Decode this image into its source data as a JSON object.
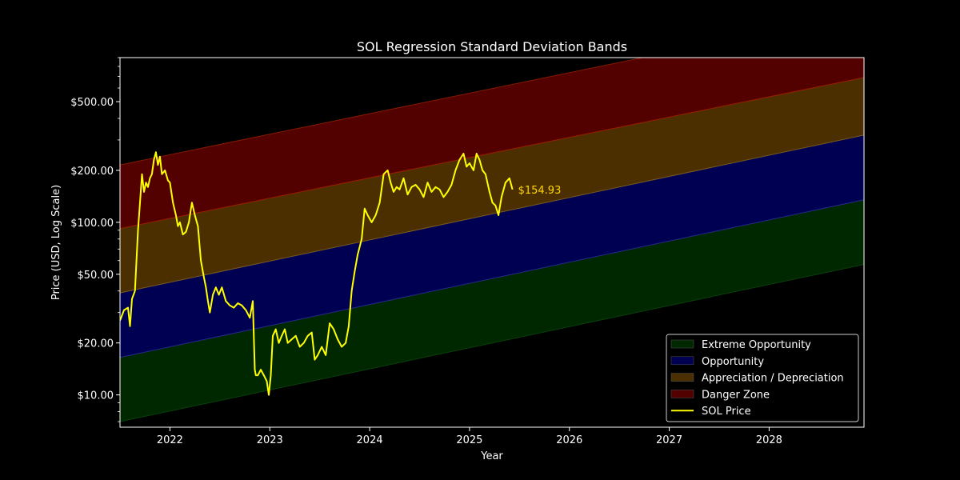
{
  "chart_data": {
    "type": "area",
    "title": "SOL Regression Standard Deviation Bands",
    "xlabel": "Year",
    "ylabel": "Price (USD, Log Scale)",
    "yscale": "log",
    "xlim": [
      2021.5,
      2028.95
    ],
    "ylim": [
      6.5,
      900
    ],
    "x_ticks": [
      2022,
      2023,
      2024,
      2025,
      2026,
      2027,
      2028
    ],
    "x_tick_labels": [
      "2022",
      "2023",
      "2024",
      "2025",
      "2026",
      "2027",
      "2028"
    ],
    "y_ticks": [
      10,
      20,
      50,
      100,
      200,
      500
    ],
    "y_tick_labels": [
      "$10.00",
      "$20.00",
      "$50.00",
      "$100.00",
      "$200.00",
      "$500.00"
    ],
    "grid": false,
    "legend_position": "lower-right",
    "band_lines": {
      "x": [
        2021.5,
        2028.95
      ],
      "levels": [
        {
          "values": [
            7.0,
            57
          ]
        },
        {
          "values": [
            16.5,
            135
          ]
        },
        {
          "values": [
            39,
            320
          ]
        },
        {
          "values": [
            92,
            690
          ]
        },
        {
          "values": [
            215,
            1650
          ]
        }
      ]
    },
    "bands": [
      {
        "name": "Extreme Opportunity",
        "from_level": 0,
        "to_level": 1,
        "color": "#002800"
      },
      {
        "name": "Opportunity",
        "from_level": 1,
        "to_level": 2,
        "color": "#000052"
      },
      {
        "name": "Appreciation / Depreciation",
        "from_level": 2,
        "to_level": 3,
        "color": "#4c2f00"
      },
      {
        "name": "Danger Zone",
        "from_level": 3,
        "to_level": 4,
        "color": "#520000"
      }
    ],
    "series": [
      {
        "name": "SOL Price",
        "color": "#ffff00",
        "x": [
          2021.5,
          2021.54,
          2021.58,
          2021.6,
          2021.62,
          2021.65,
          2021.68,
          2021.7,
          2021.72,
          2021.74,
          2021.76,
          2021.78,
          2021.8,
          2021.82,
          2021.84,
          2021.86,
          2021.88,
          2021.9,
          2021.92,
          2021.95,
          2021.98,
          2022.0,
          2022.03,
          2022.06,
          2022.08,
          2022.1,
          2022.13,
          2022.16,
          2022.19,
          2022.22,
          2022.25,
          2022.28,
          2022.31,
          2022.34,
          2022.36,
          2022.38,
          2022.4,
          2022.43,
          2022.46,
          2022.49,
          2022.52,
          2022.56,
          2022.6,
          2022.64,
          2022.68,
          2022.72,
          2022.76,
          2022.8,
          2022.83,
          2022.85,
          2022.86,
          2022.88,
          2022.91,
          2022.94,
          2022.97,
          2022.99,
          2023.01,
          2023.03,
          2023.06,
          2023.09,
          2023.12,
          2023.15,
          2023.18,
          2023.22,
          2023.26,
          2023.3,
          2023.34,
          2023.38,
          2023.42,
          2023.45,
          2023.48,
          2023.52,
          2023.56,
          2023.6,
          2023.64,
          2023.68,
          2023.72,
          2023.76,
          2023.79,
          2023.82,
          2023.85,
          2023.88,
          2023.92,
          2023.95,
          2023.98,
          2024.02,
          2024.06,
          2024.1,
          2024.14,
          2024.18,
          2024.21,
          2024.24,
          2024.27,
          2024.3,
          2024.34,
          2024.38,
          2024.42,
          2024.46,
          2024.5,
          2024.54,
          2024.58,
          2024.62,
          2024.66,
          2024.7,
          2024.74,
          2024.78,
          2024.82,
          2024.86,
          2024.9,
          2024.94,
          2024.97,
          2025.0,
          2025.04,
          2025.07,
          2025.1,
          2025.13,
          2025.16,
          2025.2,
          2025.23,
          2025.26,
          2025.29,
          2025.32,
          2025.36,
          2025.4,
          2025.43
        ],
        "values": [
          27,
          31,
          32,
          25,
          36,
          40,
          90,
          130,
          190,
          150,
          170,
          160,
          180,
          190,
          230,
          255,
          215,
          240,
          190,
          200,
          175,
          170,
          130,
          110,
          95,
          100,
          85,
          88,
          100,
          130,
          110,
          95,
          60,
          48,
          42,
          35,
          30,
          38,
          42,
          38,
          42,
          35,
          33,
          32,
          34,
          33,
          31,
          28,
          35,
          14,
          13,
          13,
          14,
          13,
          12,
          10,
          13,
          22,
          24,
          20,
          22,
          24,
          20,
          21,
          22,
          19,
          20,
          22,
          23,
          16,
          17,
          19,
          17,
          26,
          24,
          21,
          19,
          20,
          25,
          40,
          52,
          65,
          80,
          120,
          110,
          100,
          110,
          130,
          190,
          200,
          170,
          150,
          160,
          155,
          180,
          145,
          160,
          165,
          155,
          140,
          170,
          150,
          160,
          155,
          140,
          150,
          165,
          200,
          230,
          250,
          210,
          220,
          200,
          250,
          230,
          200,
          190,
          150,
          130,
          125,
          110,
          140,
          170,
          180,
          154.93
        ]
      }
    ],
    "annotations": [
      {
        "text": "$154.93",
        "x": 2025.43,
        "y": 154.93,
        "color": "#ffd700"
      }
    ]
  }
}
